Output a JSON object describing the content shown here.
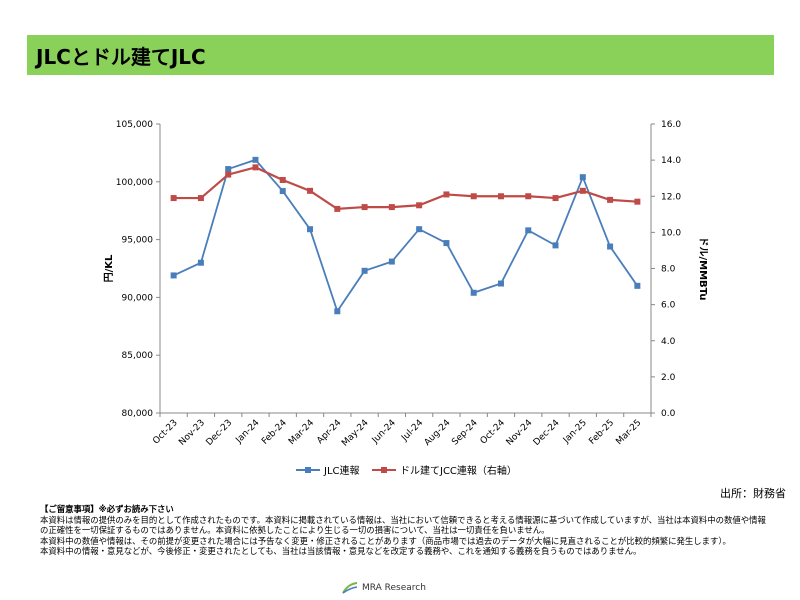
{
  "title": "JLCとドル建てJLC",
  "source": "出所：財務省",
  "disclaimer": {
    "heading": "【ご留意事項】※必ずお読み下さい",
    "lines": [
      "本資料は情報の提供のみを目的として作成されたものです。本資料に掲載されている情報は、当社において信頼できると考える情報源に基づいて作成していますが、当社は本資料中の数値や情報の正確性を一切保証するものではありません。本資料に依拠したことにより生じる一切の損害について、当社は一切責任を負いません。",
      "本資料中の数値や情報は、その前提が変更された場合には予告なく変更・修正されることがあります（商品市場では過去のデータが大幅に見直されることが比較的頻繁に発生します）。",
      "本資料中の情報・意見などが、今後修正・変更されたとしても、当社は当該情報・意見などを改定する義務や、これを通知する義務を負うものではありません。"
    ]
  },
  "logo": {
    "text": "MRA Research",
    "icon": "mra-arrow-logo-icon"
  },
  "chart_data": {
    "type": "line",
    "categories": [
      "Oct-23",
      "Nov-23",
      "Dec-23",
      "Jan-24",
      "Feb-24",
      "Mar-24",
      "Apr-24",
      "May-24",
      "Jun-24",
      "Jul-24",
      "Aug-24",
      "Sep-24",
      "Oct-24",
      "Nov-24",
      "Dec-24",
      "Jan-25",
      "Feb-25",
      "Mar-25"
    ],
    "y_left": {
      "label": "円/KL",
      "range": [
        80000,
        105000
      ],
      "ticks": [
        "80,000",
        "85,000",
        "90,000",
        "95,000",
        "100,000",
        "105,000"
      ]
    },
    "y_right": {
      "label": "ドル/MMBTu",
      "range": [
        0,
        16
      ],
      "ticks": [
        "0.0",
        "2.0",
        "4.0",
        "6.0",
        "8.0",
        "10.0",
        "12.0",
        "14.0",
        "16.0"
      ]
    },
    "series": [
      {
        "name": "JLC連報",
        "axis": "left",
        "color": "#4a7ebb",
        "marker": "square",
        "values": [
          91900,
          93000,
          101100,
          101900,
          99200,
          95900,
          88800,
          92300,
          93100,
          95900,
          94700,
          90400,
          91200,
          95800,
          94500,
          100400,
          94400,
          91000
        ]
      },
      {
        "name": "ドル建てJCC連報（右軸）",
        "axis": "right",
        "color": "#be4b48",
        "marker": "square",
        "values": [
          11.9,
          11.9,
          13.2,
          13.6,
          12.9,
          12.3,
          11.3,
          11.4,
          11.4,
          11.5,
          12.1,
          12.0,
          12.0,
          12.0,
          11.9,
          12.3,
          11.8,
          11.7
        ]
      }
    ],
    "grid": false,
    "legend_position": "bottom"
  }
}
